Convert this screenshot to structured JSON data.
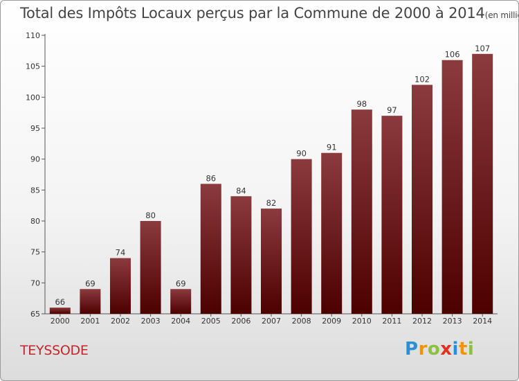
{
  "header": {
    "title": "Total des Impôts Locaux perçus par la Commune de 2000 à 2014",
    "unit": "(en milliers d'€)"
  },
  "commune": "TEYSSODE",
  "logo": {
    "parts": [
      "P",
      "r",
      "o",
      "x",
      "i",
      "t",
      "i"
    ]
  },
  "colors": {
    "bar_top": "#8b3a3e",
    "bar_bottom": "#4d0000",
    "commune": "#c2262c"
  },
  "chart_data": {
    "type": "bar",
    "title": "Total des Impôts Locaux perçus par la Commune de 2000 à 2014",
    "ylabel": "en milliers d'€",
    "xlabel": "",
    "categories": [
      "2000",
      "2001",
      "2002",
      "2003",
      "2004",
      "2005",
      "2006",
      "2007",
      "2008",
      "2009",
      "2010",
      "2011",
      "2012",
      "2013",
      "2014"
    ],
    "values": [
      66,
      69,
      74,
      80,
      69,
      86,
      84,
      82,
      90,
      91,
      98,
      97,
      102,
      106,
      107
    ],
    "ylim": [
      65,
      110
    ],
    "yticks": [
      65,
      70,
      75,
      80,
      85,
      90,
      95,
      100,
      105,
      110
    ],
    "grid": false
  }
}
